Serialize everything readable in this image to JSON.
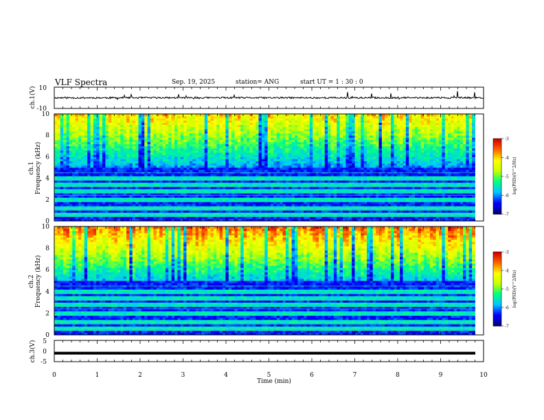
{
  "header": {
    "title": "VLF Spectra",
    "date": "Sep. 19, 2025",
    "station": "station= ANG",
    "start": "start  UT =   1 : 30 : 0"
  },
  "chart_data": [
    {
      "type": "line",
      "name": "ch1-waveform",
      "ylabel": "ch.1(V)",
      "ylim": [
        -10,
        10
      ],
      "yticks": [
        "10",
        "-10"
      ],
      "xlim": [
        0,
        10
      ],
      "baseline": 0
    },
    {
      "type": "heatmap",
      "name": "ch1-spectrogram",
      "ylabel_line1": "ch.1",
      "ylabel_line2": "Frequency (kHz)",
      "ylim": [
        0,
        10
      ],
      "yticks": [
        "0",
        "2",
        "4",
        "6",
        "8",
        "10"
      ],
      "xlim": [
        0,
        9.8
      ],
      "colorbar": {
        "label": "log(PSD)(V^2/Hz)",
        "ticks": [
          "-3",
          "-4",
          "-5",
          "-6",
          "-7"
        ],
        "range": [
          -7,
          -3
        ]
      }
    },
    {
      "type": "heatmap",
      "name": "ch2-spectrogram",
      "ylabel_line1": "ch.2",
      "ylabel_line2": "Frequency (kHz)",
      "ylim": [
        0,
        10
      ],
      "yticks": [
        "0",
        "2",
        "4",
        "6",
        "8",
        "10"
      ],
      "xlim": [
        0,
        9.8
      ],
      "colorbar": {
        "label": "log(PSD)(V^2/Hz)",
        "ticks": [
          "-3",
          "-4",
          "-5",
          "-6",
          "-7"
        ],
        "range": [
          -7,
          -3
        ]
      }
    },
    {
      "type": "line",
      "name": "ch3-waveform",
      "ylabel": "ch.3(V)",
      "ylim": [
        -5,
        5
      ],
      "yticks": [
        "5",
        "0",
        "-5"
      ],
      "xlim": [
        0,
        10
      ],
      "baseline": -1.0
    }
  ],
  "xaxis": {
    "label": "Time  (min)",
    "ticks": [
      "0",
      "1",
      "2",
      "3",
      "4",
      "5",
      "6",
      "7",
      "8",
      "9",
      "10"
    ]
  },
  "colors": {
    "colormap": [
      "#00007f",
      "#0000ff",
      "#00c8ff",
      "#00ff80",
      "#c8ff00",
      "#ffff00",
      "#ff6400",
      "#d00000"
    ]
  }
}
